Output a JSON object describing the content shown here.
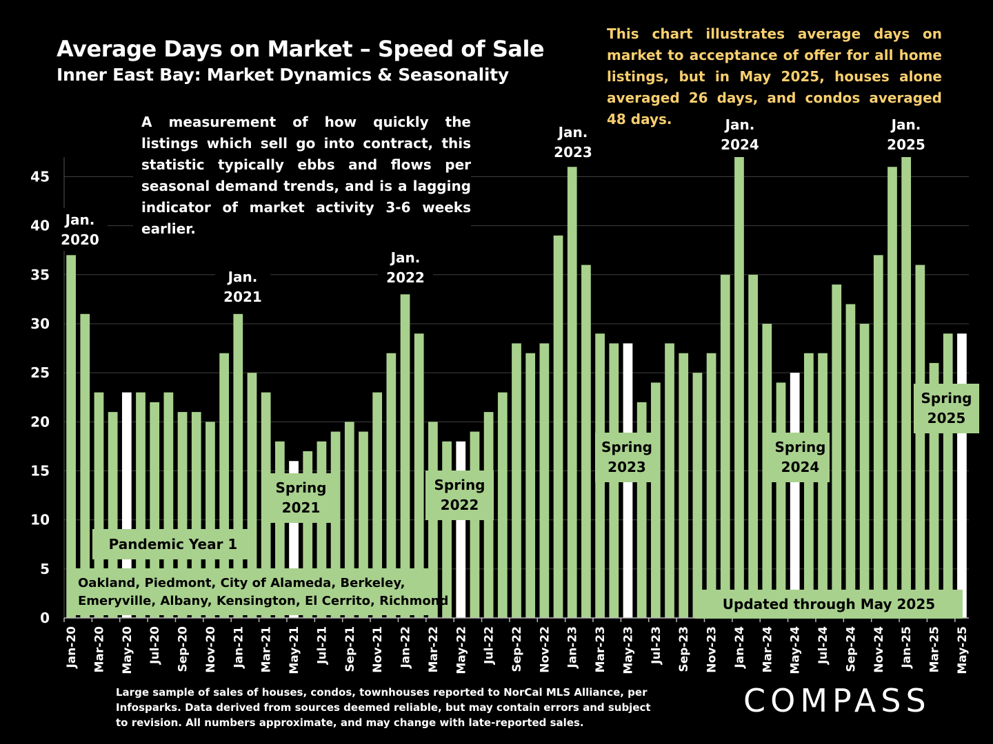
{
  "title": "Average Days on Market – Speed of Sale",
  "subtitle": "Inner East Bay: Market Dynamics & Seasonality",
  "note": "This chart illustrates average days on market to acceptance of offer for all home listings, but in May 2025, houses alone averaged 26 days, and condos averaged 48 days.",
  "description": "A measurement of how quickly the listings which sell go into contract, this statistic typically ebbs and flows per seasonal demand trends, and is a lagging indicator of market activity 3-6 weeks earlier.",
  "footer": "Large sample of sales of houses, condos, townhouses reported to NorCal MLS Alliance, per Infosparks. Data derived from sources deemed reliable, but may contain errors and subject to revision. All numbers approximate, and may change with late-reported sales.",
  "logo": "COMPASS",
  "colors": {
    "bar": "#a9d18e",
    "highlight_bar": "#ffffff",
    "background": "#000000",
    "note_text": "#f9cf6f",
    "grid": "#404040"
  },
  "chart_data": {
    "type": "bar",
    "ylim": [
      0,
      47
    ],
    "yticks": [
      0,
      5,
      10,
      15,
      20,
      25,
      30,
      35,
      40,
      45
    ],
    "grid": true,
    "categories": [
      "Jan-20",
      "Feb-20",
      "Mar-20",
      "Apr-20",
      "May-20",
      "Jun-20",
      "Jul-20",
      "Aug-20",
      "Sep-20",
      "Oct-20",
      "Nov-20",
      "Dec-20",
      "Jan-21",
      "Feb-21",
      "Mar-21",
      "Apr-21",
      "May-21",
      "Jun-21",
      "Jul-21",
      "Aug-21",
      "Sep-21",
      "Oct-21",
      "Nov-21",
      "Dec-21",
      "Jan-22",
      "Feb-22",
      "Mar-22",
      "Apr-22",
      "May-22",
      "Jun-22",
      "Jul-22",
      "Aug-22",
      "Sep-22",
      "Oct-22",
      "Nov-22",
      "Dec-22",
      "Jan-23",
      "Feb-23",
      "Mar-23",
      "Apr-23",
      "May-23",
      "Jun-23",
      "Jul-23",
      "Aug-23",
      "Sep-23",
      "Oct-23",
      "Nov-23",
      "Dec-23",
      "Jan-24",
      "Feb-24",
      "Mar-24",
      "Apr-24",
      "May-24",
      "Jun-24",
      "Jul-24",
      "Aug-24",
      "Sep-24",
      "Oct-24",
      "Nov-24",
      "Dec-24",
      "Jan-25",
      "Feb-25",
      "Mar-25",
      "Apr-25",
      "May-25"
    ],
    "values": [
      37,
      31,
      23,
      21,
      23,
      23,
      22,
      23,
      21,
      21,
      20,
      27,
      31,
      25,
      23,
      18,
      16,
      17,
      18,
      19,
      20,
      19,
      23,
      27,
      33,
      29,
      20,
      18,
      18,
      19,
      21,
      23,
      28,
      27,
      28,
      39,
      46,
      36,
      29,
      28,
      28,
      22,
      24,
      28,
      27,
      25,
      27,
      35,
      48,
      35,
      30,
      24,
      25,
      27,
      27,
      34,
      32,
      30,
      37,
      46,
      49,
      36,
      26,
      29,
      29
    ],
    "highlighted": [
      "May-20",
      "May-21",
      "May-22",
      "May-23",
      "May-24",
      "May-25"
    ],
    "x_tick_labels": [
      "Jan-20",
      "Mar-20",
      "May-20",
      "Jul-20",
      "Sep-20",
      "Nov-20",
      "Jan-21",
      "Mar-21",
      "May-21",
      "Jul-21",
      "Sep-21",
      "Nov-21",
      "Jan-22",
      "Mar-22",
      "May-22",
      "Jul-22",
      "Sep-22",
      "Nov-22",
      "Jan-23",
      "Mar-23",
      "May-23",
      "Jul-23",
      "Sep-23",
      "Nov-23",
      "Jan-24",
      "Mar-24",
      "May-24",
      "Jul-24",
      "Sep-24",
      "Nov-24",
      "Jan-25",
      "Mar-25",
      "May-25"
    ],
    "annotations": {
      "jan": [
        {
          "lines": [
            "Jan.",
            "2020"
          ],
          "category": "Jan-20"
        },
        {
          "lines": [
            "Jan.",
            "2021"
          ],
          "category": "Jan-21"
        },
        {
          "lines": [
            "Jan.",
            "2022"
          ],
          "category": "Jan-22"
        },
        {
          "lines": [
            "Jan.",
            "2023"
          ],
          "category": "Jan-23"
        },
        {
          "lines": [
            "Jan.",
            "2024"
          ],
          "category": "Jan-24"
        },
        {
          "lines": [
            "Jan.",
            "2025"
          ],
          "category": "Jan-25"
        }
      ],
      "spring": [
        {
          "lines": [
            "Spring",
            "2021"
          ],
          "category": "May-21"
        },
        {
          "lines": [
            "Spring",
            "2022"
          ],
          "category": "May-22"
        },
        {
          "lines": [
            "Spring",
            "2023"
          ],
          "category": "May-23"
        },
        {
          "lines": [
            "Spring",
            "2024"
          ],
          "category": "May-24"
        },
        {
          "lines": [
            "Spring",
            "2025"
          ],
          "category": "May-25"
        }
      ],
      "pandemic": "Pandemic Year 1",
      "regions": [
        "Oakland,  Piedmont,  City  of  Alameda,  Berkeley,",
        "Emeryville, Albany, Kensington, El Cerrito, Richmond"
      ],
      "updated": "Updated through May 2025"
    }
  }
}
